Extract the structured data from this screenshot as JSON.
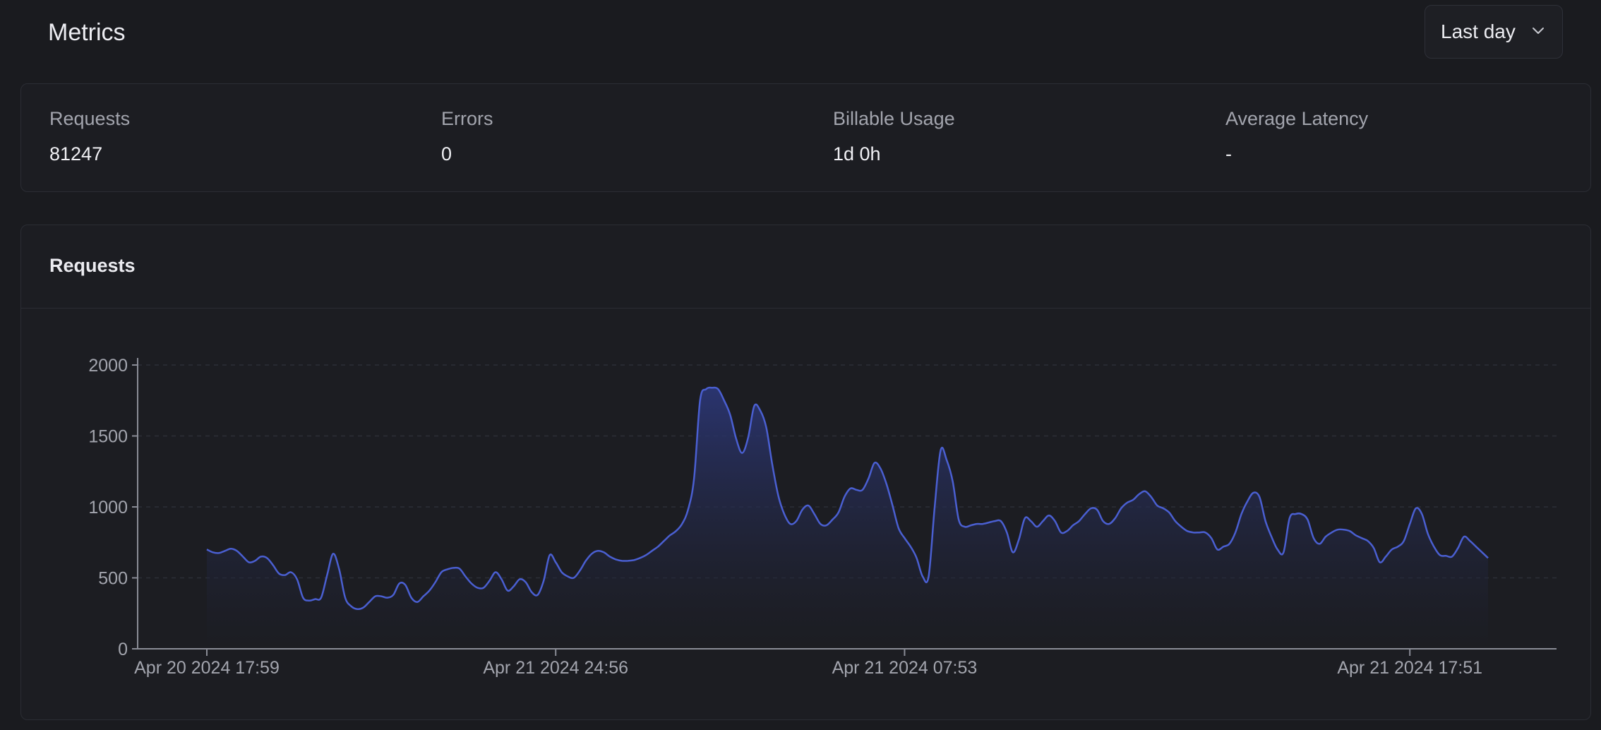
{
  "header": {
    "title": "Metrics",
    "range_select": {
      "value": "Last day"
    }
  },
  "stats": [
    {
      "label": "Requests",
      "value": "81247"
    },
    {
      "label": "Errors",
      "value": "0"
    },
    {
      "label": "Billable Usage",
      "value": "1d 0h"
    },
    {
      "label": "Average Latency",
      "value": "-"
    }
  ],
  "colors": {
    "background": "#1a1b1f",
    "card": "#1c1d22",
    "line": "#4a5fd1",
    "area_top": "#27306a",
    "axis": "#8a8c96"
  },
  "chart_data": {
    "type": "area",
    "title": "Requests",
    "xlabel": "",
    "ylabel": "",
    "ylim": [
      0,
      2000
    ],
    "yticks": [
      0,
      500,
      1000,
      1500,
      2000
    ],
    "xticks": [
      {
        "label": "Apr 20 2024 17:59",
        "index": 0
      },
      {
        "label": "Apr 21 2024 24:56",
        "index": 58
      },
      {
        "label": "Apr 21 2024 07:53",
        "index": 116
      },
      {
        "label": "Apr 21 2024 17:51",
        "index": 200
      }
    ],
    "grid": true,
    "values": [
      700,
      680,
      675,
      690,
      705,
      690,
      650,
      610,
      620,
      650,
      640,
      590,
      530,
      520,
      540,
      490,
      360,
      340,
      350,
      360,
      520,
      670,
      560,
      360,
      300,
      280,
      290,
      330,
      370,
      370,
      360,
      380,
      460,
      450,
      360,
      330,
      370,
      410,
      470,
      540,
      560,
      570,
      565,
      510,
      460,
      430,
      430,
      480,
      540,
      490,
      410,
      440,
      490,
      470,
      400,
      380,
      480,
      660,
      610,
      540,
      510,
      500,
      550,
      620,
      670,
      690,
      680,
      650,
      630,
      620,
      620,
      625,
      640,
      660,
      690,
      720,
      760,
      800,
      830,
      880,
      980,
      1200,
      1750,
      1830,
      1840,
      1830,
      1750,
      1650,
      1480,
      1380,
      1490,
      1710,
      1680,
      1560,
      1300,
      1080,
      950,
      880,
      900,
      980,
      1010,
      950,
      880,
      870,
      910,
      960,
      1070,
      1130,
      1120,
      1120,
      1200,
      1310,
      1270,
      1160,
      1010,
      850,
      780,
      720,
      640,
      510,
      510,
      1000,
      1400,
      1330,
      1180,
      910,
      860,
      870,
      880,
      880,
      890,
      900,
      900,
      820,
      680,
      770,
      920,
      900,
      860,
      900,
      940,
      900,
      820,
      830,
      870,
      900,
      950,
      990,
      980,
      900,
      880,
      920,
      990,
      1030,
      1050,
      1090,
      1110,
      1070,
      1010,
      990,
      960,
      900,
      860,
      830,
      820,
      820,
      820,
      780,
      700,
      720,
      740,
      820,
      950,
      1040,
      1100,
      1070,
      900,
      790,
      700,
      680,
      920,
      950,
      950,
      910,
      780,
      740,
      790,
      820,
      840,
      840,
      830,
      800,
      780,
      760,
      710,
      610,
      650,
      700,
      720,
      760,
      880,
      990,
      950,
      810,
      720,
      660,
      655,
      650,
      710,
      790,
      760,
      720,
      680,
      640
    ]
  }
}
